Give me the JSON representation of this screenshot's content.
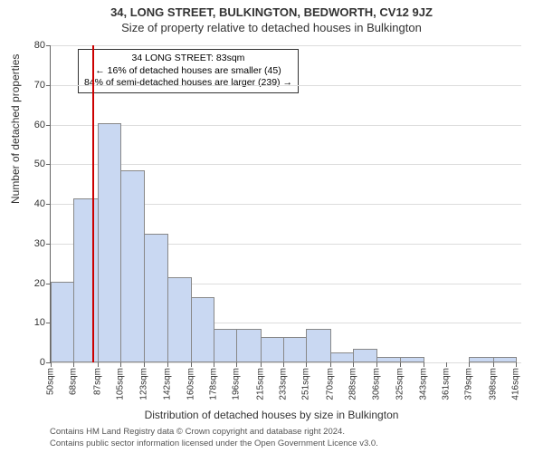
{
  "title_line1": "34, LONG STREET, BULKINGTON, BEDWORTH, CV12 9JZ",
  "title_line2": "Size of property relative to detached houses in Bulkington",
  "y_axis_label": "Number of detached properties",
  "x_axis_label": "Distribution of detached houses by size in Bulkington",
  "chart": {
    "type": "histogram",
    "y_max": 80,
    "y_ticks": [
      0,
      10,
      20,
      30,
      40,
      50,
      60,
      70,
      80
    ],
    "x_tick_labels": [
      "50sqm",
      "68sqm",
      "87sqm",
      "105sqm",
      "123sqm",
      "142sqm",
      "160sqm",
      "178sqm",
      "196sqm",
      "215sqm",
      "233sqm",
      "251sqm",
      "270sqm",
      "288sqm",
      "306sqm",
      "325sqm",
      "343sqm",
      "361sqm",
      "379sqm",
      "398sqm",
      "416sqm"
    ],
    "x_min": 50,
    "x_max": 420,
    "bar_fill": "#c9d8f2",
    "bar_border": "#888",
    "grid_color": "#ddd",
    "bars": [
      {
        "start": 50,
        "end": 68,
        "value": 20
      },
      {
        "start": 68,
        "end": 87,
        "value": 41
      },
      {
        "start": 87,
        "end": 105,
        "value": 60
      },
      {
        "start": 105,
        "end": 123,
        "value": 48
      },
      {
        "start": 123,
        "end": 142,
        "value": 32
      },
      {
        "start": 142,
        "end": 160,
        "value": 21
      },
      {
        "start": 160,
        "end": 178,
        "value": 16
      },
      {
        "start": 178,
        "end": 196,
        "value": 8
      },
      {
        "start": 196,
        "end": 215,
        "value": 8
      },
      {
        "start": 215,
        "end": 233,
        "value": 6
      },
      {
        "start": 233,
        "end": 251,
        "value": 6
      },
      {
        "start": 251,
        "end": 270,
        "value": 8
      },
      {
        "start": 270,
        "end": 288,
        "value": 2
      },
      {
        "start": 288,
        "end": 306,
        "value": 3
      },
      {
        "start": 306,
        "end": 325,
        "value": 1
      },
      {
        "start": 325,
        "end": 343,
        "value": 1
      },
      {
        "start": 343,
        "end": 361,
        "value": 0
      },
      {
        "start": 361,
        "end": 379,
        "value": 0
      },
      {
        "start": 379,
        "end": 398,
        "value": 1
      },
      {
        "start": 398,
        "end": 416,
        "value": 1
      }
    ],
    "reference_line": {
      "x_value": 83,
      "color": "#cc0000"
    },
    "annotation": {
      "line1": "34 LONG STREET: 83sqm",
      "line2": "← 16% of detached houses are smaller (45)",
      "line3": "84% of semi-detached houses are larger (239) →"
    }
  },
  "footer_line1": "Contains HM Land Registry data © Crown copyright and database right 2024.",
  "footer_line2": "Contains public sector information licensed under the Open Government Licence v3.0."
}
